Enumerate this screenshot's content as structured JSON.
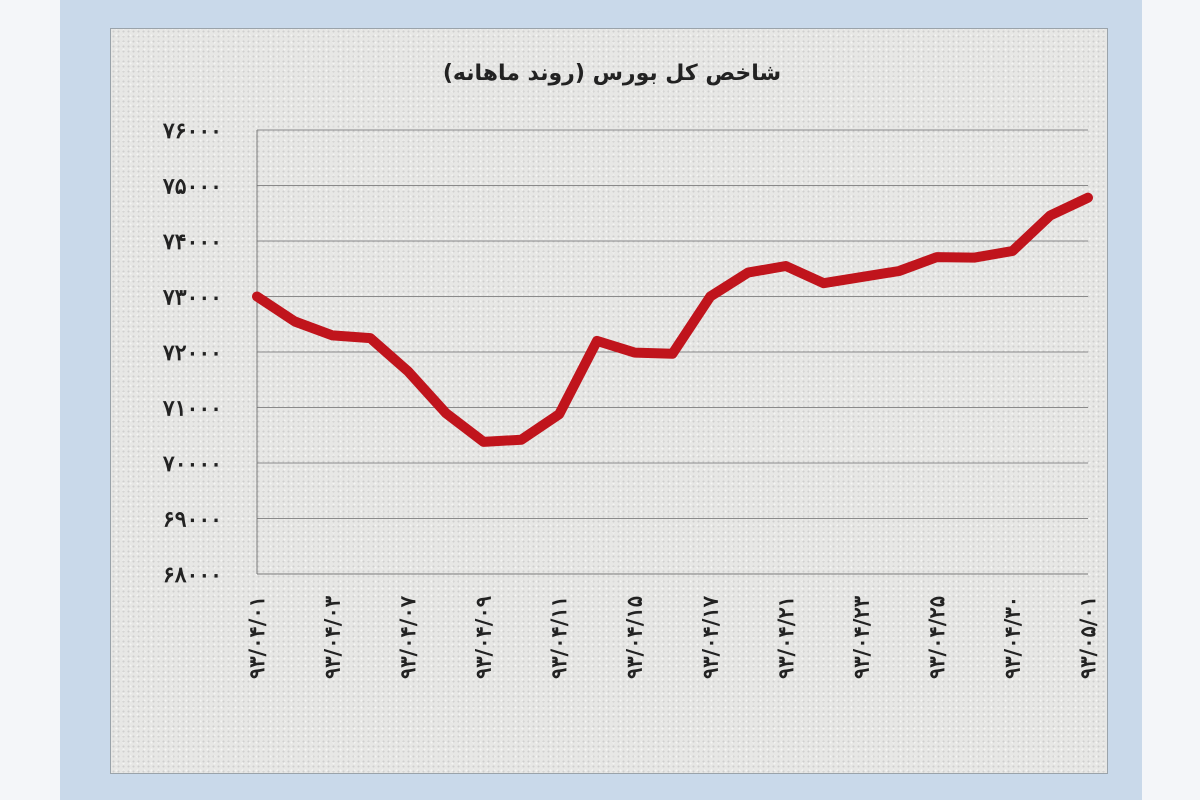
{
  "chart_data": {
    "type": "line",
    "title": "شاخص کل بورس (روند ماهانه)",
    "xlabel": "",
    "ylabel": "",
    "ylim": [
      68000,
      76000
    ],
    "y_ticks": [
      76000,
      75000,
      74000,
      73000,
      72000,
      71000,
      70000,
      69000,
      68000
    ],
    "y_tick_labels": [
      "۷۶۰۰۰",
      "۷۵۰۰۰",
      "۷۴۰۰۰",
      "۷۳۰۰۰",
      "۷۲۰۰۰",
      "۷۱۰۰۰",
      "۷۰۰۰۰",
      "۶۹۰۰۰",
      "۶۸۰۰۰"
    ],
    "x_tick_labels": [
      "۹۳/۰۴/۰۱",
      "۹۳/۰۴/۰۳",
      "۹۳/۰۴/۰۷",
      "۹۳/۰۴/۰۹",
      "۹۳/۰۴/۱۱",
      "۹۳/۰۴/۱۵",
      "۹۳/۰۴/۱۷",
      "۹۳/۰۴/۲۱",
      "۹۳/۰۴/۲۳",
      "۹۳/۰۴/۲۵",
      "۹۳/۰۴/۳۰",
      "۹۳/۰۵/۰۱"
    ],
    "grid": true,
    "color": "#c0141c",
    "series": [
      {
        "values": [
          73000,
          72550,
          72300,
          72250,
          71650,
          70900,
          70380,
          70420,
          70880,
          72200,
          71990,
          71970,
          73000,
          73430,
          73550,
          73240,
          73350,
          73460,
          73710,
          73700,
          73820,
          74460,
          74780
        ]
      }
    ]
  }
}
